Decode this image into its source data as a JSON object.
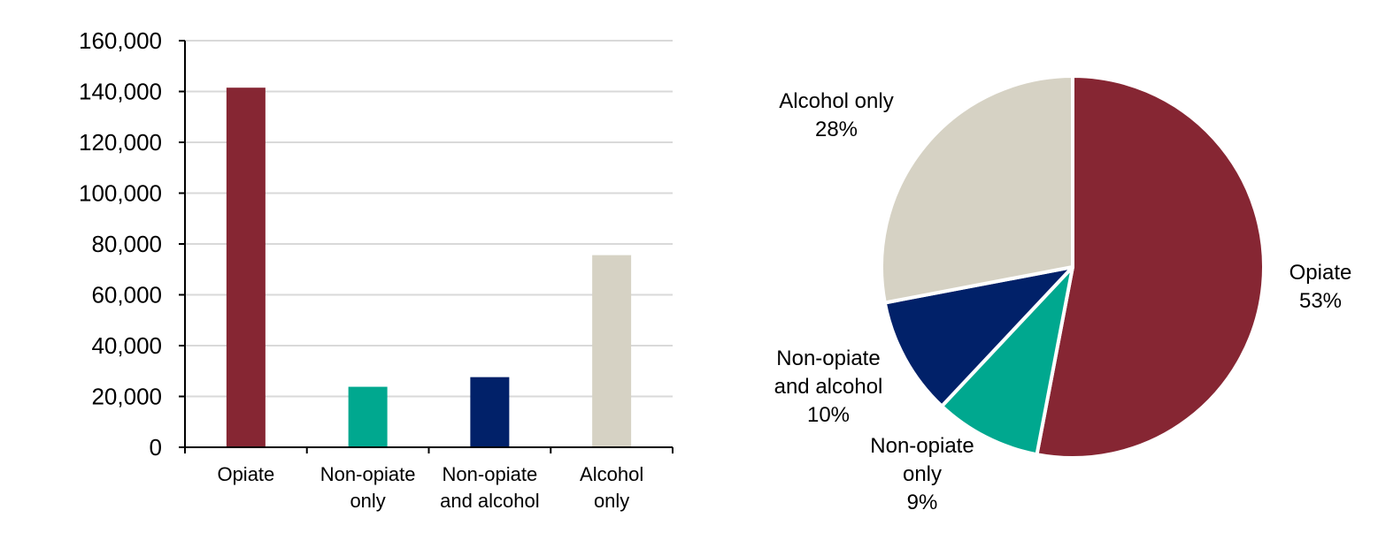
{
  "chart_data": [
    {
      "type": "bar",
      "categories": [
        [
          "Opiate"
        ],
        [
          "Non-opiate",
          "only"
        ],
        [
          "Non-opiate",
          "and alcohol"
        ],
        [
          "Alcohol",
          "only"
        ]
      ],
      "values": [
        141500,
        23800,
        27600,
        75600
      ],
      "colors": [
        "#862633",
        "#00a88f",
        "#012169",
        "#d6d2c4"
      ],
      "yticks": [
        "0",
        "20,000",
        "40,000",
        "60,000",
        "80,000",
        "100,000",
        "120,000",
        "140,000",
        "160,000"
      ],
      "ylim": [
        0,
        160000
      ],
      "grid": true,
      "legend": "none"
    },
    {
      "type": "pie",
      "slices": [
        {
          "label": [
            "Opiate"
          ],
          "pct": "53%",
          "value": 53,
          "color": "#862633"
        },
        {
          "label": [
            "Non-opiate",
            "only"
          ],
          "pct": "9%",
          "value": 9,
          "color": "#00a88f"
        },
        {
          "label": [
            "Non-opiate",
            "and alcohol"
          ],
          "pct": "10%",
          "value": 10,
          "color": "#012169"
        },
        {
          "label": [
            "Alcohol only"
          ],
          "pct": "28%",
          "value": 28,
          "color": "#d6d2c4"
        }
      ],
      "start": "12 o'clock",
      "direction": "clockwise",
      "legend": "none"
    }
  ]
}
